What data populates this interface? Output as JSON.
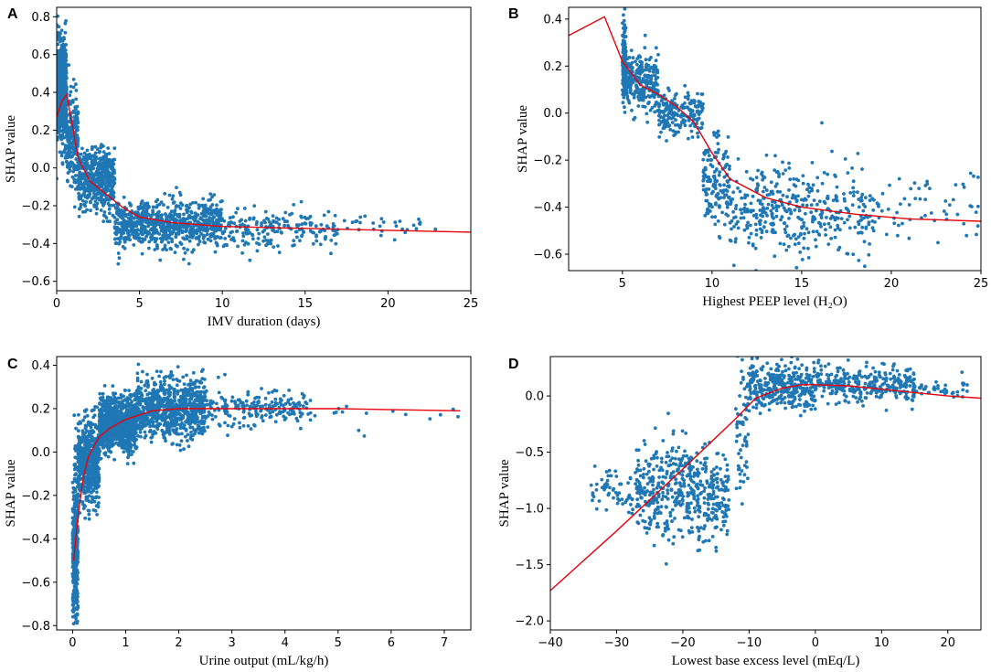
{
  "chart_data": [
    {
      "panel": "A",
      "type": "scatter",
      "xlabel": "IMV duration (days)",
      "ylabel": "SHAP value",
      "xlim": [
        0,
        25
      ],
      "ylim": [
        -0.65,
        0.85
      ],
      "xticks": [
        0,
        5,
        10,
        15,
        20,
        25
      ],
      "xtick_labels": [
        "0",
        "5",
        "10",
        "15",
        "20",
        "25"
      ],
      "yticks": [
        -0.6,
        -0.4,
        -0.2,
        0.0,
        0.2,
        0.4,
        0.6,
        0.8
      ],
      "ytick_labels": [
        "−0.6",
        "−0.4",
        "−0.2",
        "0.0",
        "0.2",
        "0.4",
        "0.6",
        "0.8"
      ],
      "scatter_clusters": [
        {
          "x": [
            0,
            0.6
          ],
          "y_center": 0.4,
          "y_spread": 0.42,
          "count": 700
        },
        {
          "x": [
            0.6,
            1.3
          ],
          "y_center": 0.15,
          "y_spread": 0.4,
          "count": 220
        },
        {
          "x": [
            1.3,
            3.5
          ],
          "y_center": -0.07,
          "y_spread": 0.26,
          "count": 500
        },
        {
          "x": [
            3.5,
            10
          ],
          "y_center": -0.3,
          "y_spread": 0.2,
          "count": 800
        },
        {
          "x": [
            10,
            17
          ],
          "y_center": -0.32,
          "y_spread": 0.16,
          "count": 200
        },
        {
          "x": [
            17,
            23
          ],
          "y_center": -0.3,
          "y_spread": 0.14,
          "count": 30
        }
      ],
      "trend": {
        "x": [
          0,
          0.3,
          0.6,
          1.0,
          1.3,
          2,
          3,
          4,
          5,
          7,
          10,
          15,
          20,
          25
        ],
        "y": [
          0.27,
          0.35,
          0.39,
          0.2,
          0.05,
          -0.07,
          -0.14,
          -0.21,
          -0.26,
          -0.29,
          -0.31,
          -0.32,
          -0.33,
          -0.34
        ]
      }
    },
    {
      "panel": "B",
      "type": "scatter",
      "xlabel": "Highest PEEP level (H₂O)",
      "ylabel": "SHAP value",
      "xlim": [
        2,
        25
      ],
      "ylim": [
        -0.67,
        0.45
      ],
      "xticks": [
        5,
        10,
        15,
        20,
        25
      ],
      "xtick_labels": [
        "5",
        "10",
        "15",
        "20",
        "25"
      ],
      "yticks": [
        -0.6,
        -0.4,
        -0.2,
        0.0,
        0.2,
        0.4
      ],
      "ytick_labels": [
        "−0.6",
        "−0.4",
        "−0.2",
        "0.0",
        "0.2",
        "0.4"
      ],
      "scatter_clusters": [
        {
          "x": [
            5,
            5.2
          ],
          "y_center": 0.22,
          "y_spread": 0.3,
          "count": 150
        },
        {
          "x": [
            5.2,
            7
          ],
          "y_center": 0.13,
          "y_spread": 0.18,
          "count": 250
        },
        {
          "x": [
            7,
            9.5
          ],
          "y_center": 0.0,
          "y_spread": 0.15,
          "count": 200
        },
        {
          "x": [
            9.5,
            11
          ],
          "y_center": -0.3,
          "y_spread": 0.3,
          "count": 150
        },
        {
          "x": [
            11,
            19
          ],
          "y_center": -0.42,
          "y_spread": 0.32,
          "count": 400
        },
        {
          "x": [
            19,
            25
          ],
          "y_center": -0.4,
          "y_spread": 0.24,
          "count": 60
        }
      ],
      "trend": {
        "x": [
          2,
          4,
          5,
          6,
          7,
          8,
          9,
          10,
          11,
          13,
          15,
          18,
          21,
          25
        ],
        "y": [
          0.33,
          0.41,
          0.22,
          0.12,
          0.08,
          0.03,
          -0.04,
          -0.17,
          -0.28,
          -0.36,
          -0.4,
          -0.43,
          -0.45,
          -0.46
        ]
      }
    },
    {
      "panel": "C",
      "type": "scatter",
      "xlabel": "Urine output (mL/kg/h)",
      "ylabel": "SHAP value",
      "xlim": [
        -0.3,
        7.5
      ],
      "ylim": [
        -0.82,
        0.44
      ],
      "xticks": [
        0,
        1,
        2,
        3,
        4,
        5,
        6,
        7
      ],
      "xtick_labels": [
        "0",
        "1",
        "2",
        "3",
        "4",
        "5",
        "6",
        "7"
      ],
      "yticks": [
        -0.8,
        -0.6,
        -0.4,
        -0.2,
        0.0,
        0.2,
        0.4
      ],
      "ytick_labels": [
        "−0.8",
        "−0.6",
        "−0.4",
        "−0.2",
        "0.0",
        "0.2",
        "0.4"
      ],
      "scatter_clusters": [
        {
          "x": [
            0,
            0.1
          ],
          "y_center": -0.45,
          "y_spread": 0.6,
          "count": 400
        },
        {
          "x": [
            0.1,
            0.5
          ],
          "y_center": -0.05,
          "y_spread": 0.3,
          "count": 600
        },
        {
          "x": [
            0.5,
            1.2
          ],
          "y_center": 0.13,
          "y_spread": 0.2,
          "count": 900
        },
        {
          "x": [
            1.2,
            2.5
          ],
          "y_center": 0.2,
          "y_spread": 0.22,
          "count": 800
        },
        {
          "x": [
            2.5,
            4.5
          ],
          "y_center": 0.2,
          "y_spread": 0.14,
          "count": 200
        },
        {
          "x": [
            4.5,
            7.3
          ],
          "y_center": 0.18,
          "y_spread": 0.1,
          "count": 15
        }
      ],
      "trend": {
        "x": [
          0.02,
          0.1,
          0.2,
          0.3,
          0.5,
          0.7,
          1.0,
          1.5,
          2.0,
          3,
          4,
          5,
          6,
          7.3
        ],
        "y": [
          -0.5,
          -0.3,
          -0.12,
          -0.02,
          0.07,
          0.11,
          0.15,
          0.19,
          0.2,
          0.2,
          0.2,
          0.2,
          0.195,
          0.19
        ]
      }
    },
    {
      "panel": "D",
      "type": "scatter",
      "xlabel": "Lowest base excess level (mEq/L)",
      "ylabel": "SHAP value",
      "xlim": [
        -40,
        25
      ],
      "ylim": [
        -2.08,
        0.35
      ],
      "xticks": [
        -40,
        -30,
        -20,
        -10,
        0,
        10,
        20
      ],
      "xtick_labels": [
        "−40",
        "−30",
        "−20",
        "−10",
        "0",
        "10",
        "20"
      ],
      "yticks": [
        -2.0,
        -1.5,
        -1.0,
        -0.5,
        0.0
      ],
      "ytick_labels": [
        "−2.0",
        "−1.5",
        "−1.0",
        "−0.5",
        "0.0"
      ],
      "scatter_clusters": [
        {
          "x": [
            -34,
            -27
          ],
          "y_center": -0.85,
          "y_spread": 0.3,
          "count": 60
        },
        {
          "x": [
            -27,
            -13
          ],
          "y_center": -0.85,
          "y_spread": 0.7,
          "count": 500
        },
        {
          "x": [
            -12,
            -10
          ],
          "y_center": -0.3,
          "y_spread": 0.9,
          "count": 60
        },
        {
          "x": [
            -10,
            0
          ],
          "y_center": 0.08,
          "y_spread": 0.3,
          "count": 350
        },
        {
          "x": [
            0,
            15
          ],
          "y_center": 0.1,
          "y_spread": 0.25,
          "count": 300
        },
        {
          "x": [
            15,
            23
          ],
          "y_center": 0.05,
          "y_spread": 0.12,
          "count": 40
        }
      ],
      "trend": {
        "x": [
          -40,
          -30,
          -20,
          -12,
          -9,
          -5,
          -2,
          0,
          5,
          10,
          15,
          20,
          25
        ],
        "y": [
          -1.73,
          -1.2,
          -0.65,
          -0.2,
          -0.02,
          0.07,
          0.1,
          0.1,
          0.09,
          0.06,
          0.03,
          0.0,
          -0.02
        ]
      }
    }
  ]
}
